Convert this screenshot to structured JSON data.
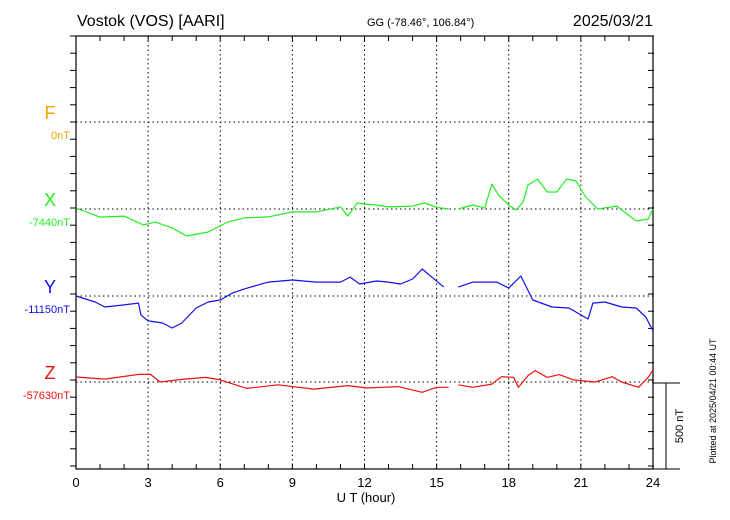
{
  "header": {
    "station": "Vostok (VOS)  [AARI]",
    "coords": "GG (-78.46°, 106.84°)",
    "date": "2025/03/21"
  },
  "footer": {
    "plotted_at": "Plotted at 2025/04/21 00:44 UT",
    "scale_label": "500 nT"
  },
  "chart_data": {
    "type": "line",
    "title": "Vostok (VOS) [AARI] 2025/03/21",
    "xlabel": "U T (hour)",
    "xlim": [
      0,
      24
    ],
    "xticks": [
      "0",
      "3",
      "6",
      "9",
      "12",
      "15",
      "18",
      "21",
      "24"
    ],
    "scale_nT": 500,
    "grid": true,
    "series": [
      {
        "name": "F",
        "baseline_label": "0nT",
        "baseline_nT": 0,
        "color": "#f5a300",
        "points": []
      },
      {
        "name": "X",
        "baseline_label": "-7440nT",
        "baseline_nT": -7440,
        "color": "#22ee22",
        "points": [
          [
            0,
            6
          ],
          [
            1,
            -47
          ],
          [
            2,
            -41
          ],
          [
            2.8,
            -93
          ],
          [
            3.3,
            -76
          ],
          [
            4,
            -110
          ],
          [
            4.6,
            -157
          ],
          [
            5.5,
            -134
          ],
          [
            6.3,
            -76
          ],
          [
            7,
            -52
          ],
          [
            8,
            -46
          ],
          [
            9,
            -17
          ],
          [
            10,
            -17
          ],
          [
            11,
            12
          ],
          [
            11.3,
            -41
          ],
          [
            11.7,
            35
          ],
          [
            12,
            29
          ],
          [
            12.5,
            23
          ],
          [
            13,
            12
          ],
          [
            14,
            17
          ],
          [
            14.5,
            35
          ],
          [
            15,
            10
          ],
          [
            15.5,
            0
          ],
          null,
          [
            15.9,
            0
          ],
          [
            16.5,
            23
          ],
          [
            17,
            6
          ],
          [
            17.3,
            145
          ],
          [
            17.6,
            76
          ],
          [
            18,
            23
          ],
          [
            18.3,
            -6
          ],
          [
            18.6,
            41
          ],
          [
            18.8,
            140
          ],
          [
            19.2,
            174
          ],
          [
            19.6,
            99
          ],
          [
            20,
            99
          ],
          [
            20.4,
            174
          ],
          [
            20.8,
            163
          ],
          [
            21.2,
            70
          ],
          [
            21.7,
            0
          ],
          [
            22.5,
            17
          ],
          [
            22.8,
            -17
          ],
          [
            23.3,
            -70
          ],
          [
            23.8,
            -58
          ],
          [
            24,
            0
          ]
        ]
      },
      {
        "name": "Y",
        "baseline_label": "-11150nT",
        "baseline_nT": -11150,
        "color": "#1010ee",
        "points": [
          [
            0,
            0
          ],
          [
            0.8,
            -35
          ],
          [
            1.2,
            -64
          ],
          [
            2,
            -52
          ],
          [
            2.6,
            -41
          ],
          [
            2.7,
            -110
          ],
          [
            3,
            -145
          ],
          [
            3.6,
            -157
          ],
          [
            4,
            -186
          ],
          [
            4.4,
            -157
          ],
          [
            5,
            -70
          ],
          [
            5.5,
            -35
          ],
          [
            6,
            -23
          ],
          [
            6.5,
            17
          ],
          [
            7,
            41
          ],
          [
            8,
            81
          ],
          [
            9,
            93
          ],
          [
            10,
            81
          ],
          [
            11,
            81
          ],
          [
            11.4,
            110
          ],
          [
            11.8,
            70
          ],
          [
            12.5,
            87
          ],
          [
            13,
            81
          ],
          [
            13.5,
            70
          ],
          [
            14,
            99
          ],
          [
            14.4,
            157
          ],
          [
            14.8,
            110
          ],
          [
            15.3,
            52
          ],
          null,
          [
            15.9,
            52
          ],
          [
            16.5,
            81
          ],
          [
            17.5,
            81
          ],
          [
            18,
            46
          ],
          [
            18.5,
            116
          ],
          [
            19,
            -23
          ],
          [
            19.8,
            -64
          ],
          [
            20.5,
            -70
          ],
          [
            21.3,
            -134
          ],
          [
            21.5,
            -41
          ],
          [
            22,
            -35
          ],
          [
            22.7,
            -64
          ],
          [
            23.3,
            -70
          ],
          [
            23.7,
            -122
          ],
          [
            24,
            -203
          ]
        ]
      },
      {
        "name": "Z",
        "baseline_label": "-57630nT",
        "baseline_nT": -57630,
        "color": "#ee1010",
        "points": [
          [
            0,
            29
          ],
          [
            1.2,
            17
          ],
          [
            2.6,
            44
          ],
          [
            3.1,
            44
          ],
          [
            3.5,
            0
          ],
          [
            4.5,
            17
          ],
          [
            5.4,
            27
          ],
          [
            6,
            12
          ],
          [
            7.1,
            -37
          ],
          [
            8.4,
            -16
          ],
          [
            9.9,
            -41
          ],
          [
            11.3,
            -21
          ],
          [
            12.1,
            -35
          ],
          [
            13.4,
            -27
          ],
          [
            14.4,
            -60
          ],
          [
            15,
            -31
          ],
          [
            15.5,
            -31
          ],
          null,
          [
            15.9,
            -16
          ],
          [
            16.5,
            -31
          ],
          [
            17.3,
            -12
          ],
          [
            17.7,
            31
          ],
          [
            18.2,
            27
          ],
          [
            18.4,
            -31
          ],
          [
            18.8,
            37
          ],
          [
            19.1,
            66
          ],
          [
            19.6,
            27
          ],
          [
            20.1,
            43
          ],
          [
            20.7,
            12
          ],
          [
            21,
            8
          ],
          [
            21.6,
            0
          ],
          [
            22.3,
            31
          ],
          [
            22.7,
            0
          ],
          [
            23.4,
            -31
          ],
          [
            23.8,
            27
          ],
          [
            24,
            70
          ]
        ]
      }
    ]
  }
}
